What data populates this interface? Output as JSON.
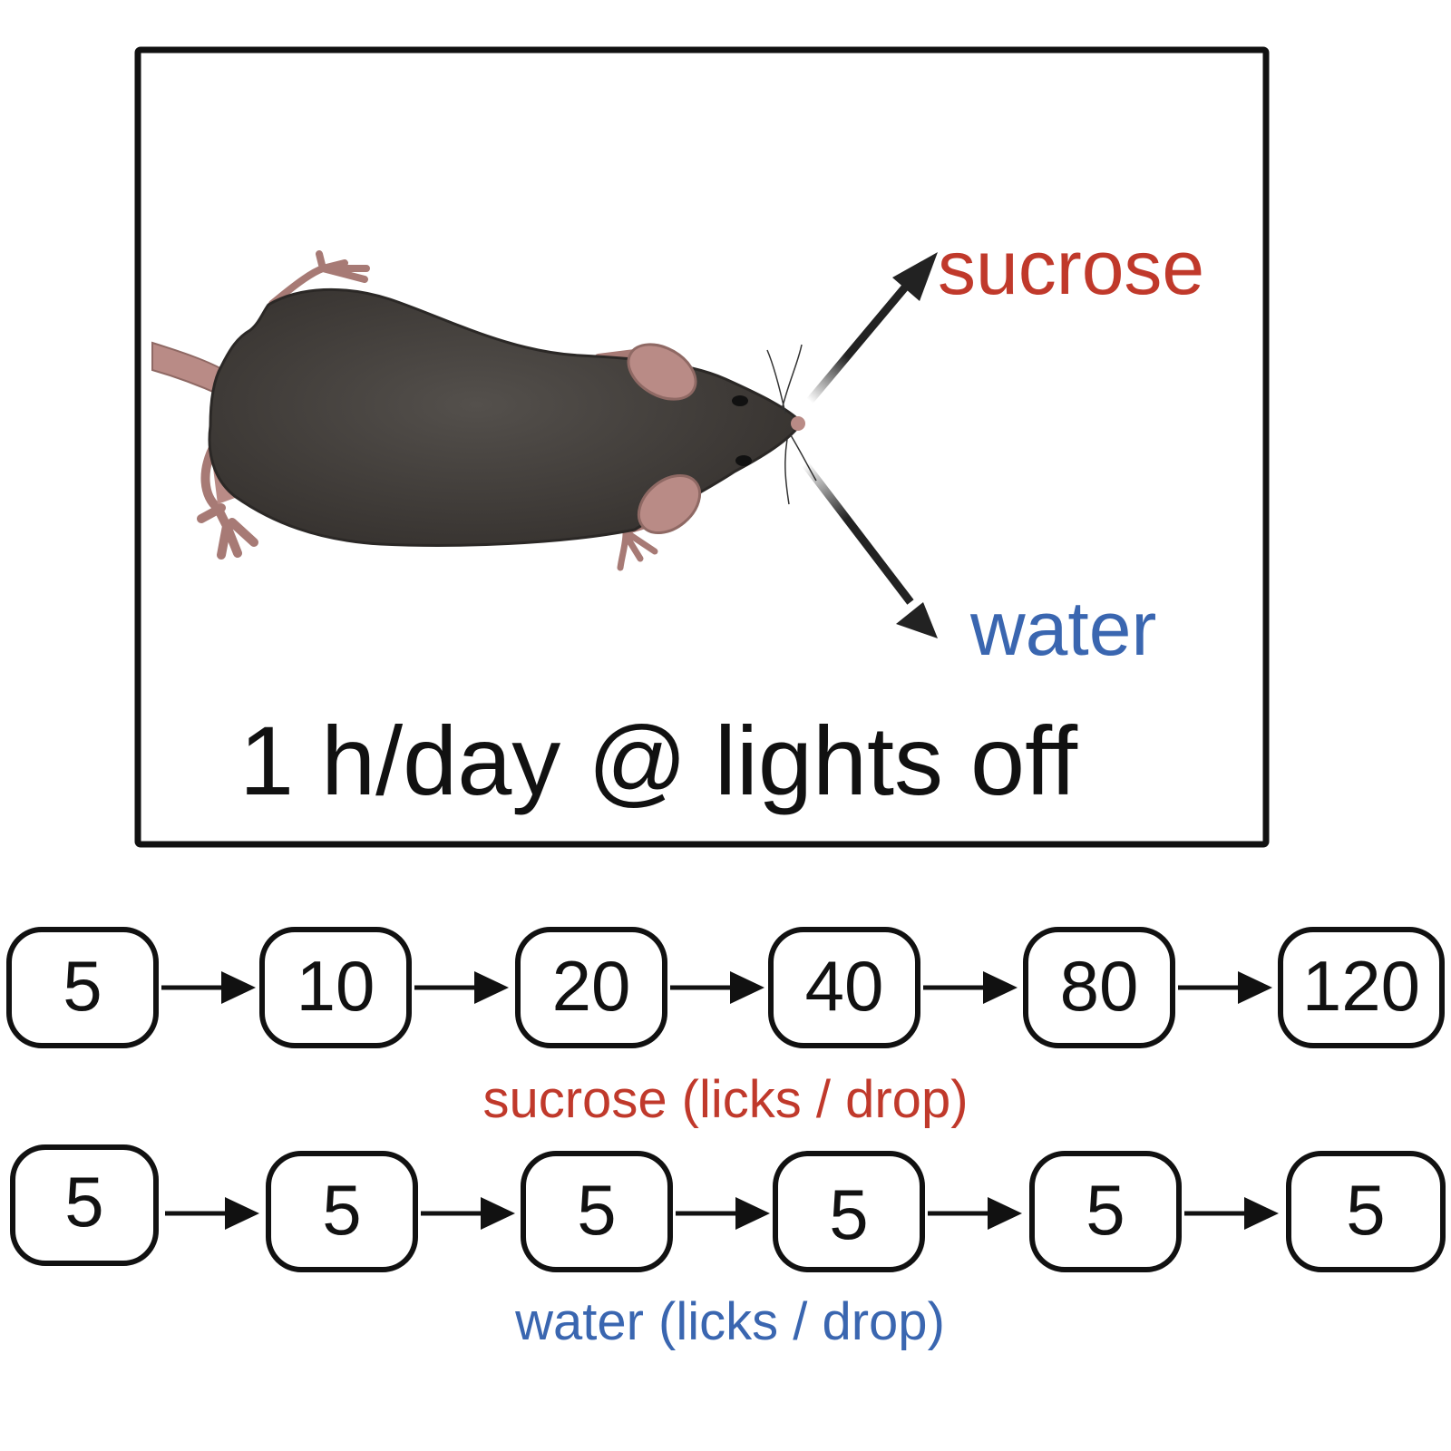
{
  "colors": {
    "sucrose": "#c0392b",
    "water": "#3a66b0",
    "ink": "#111111",
    "fur": "#3e3a37",
    "skin": "#b98b86"
  },
  "panel": {
    "sucrose_label": "sucrose",
    "water_label": "water",
    "schedule_label": "1 h/day @ lights off"
  },
  "sucrose_schedule": {
    "steps": [
      "5",
      "10",
      "20",
      "40",
      "80",
      "120"
    ],
    "caption": "sucrose (licks / drop)"
  },
  "water_schedule": {
    "steps": [
      "5",
      "5",
      "5",
      "5",
      "5",
      "5"
    ],
    "caption": "water (licks / drop)"
  }
}
